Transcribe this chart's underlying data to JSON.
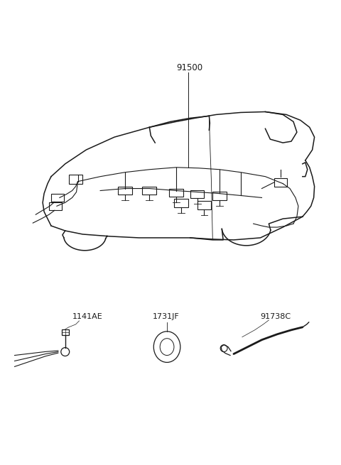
{
  "background_color": "#ffffff",
  "line_color": "#1a1a1a",
  "label_91500": "91500",
  "label_1141AE": "1141AE",
  "label_1731JF": "1731JF",
  "label_91738C": "91738C",
  "fig_width": 4.8,
  "fig_height": 6.55,
  "dpi": 100
}
